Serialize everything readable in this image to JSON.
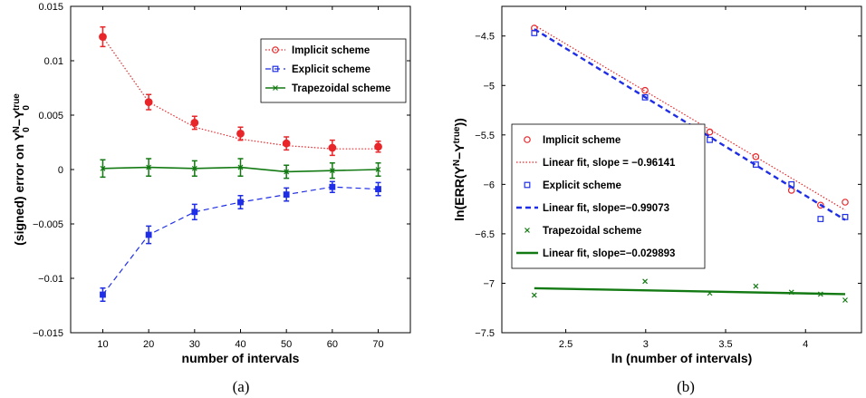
{
  "figure": {
    "colors": {
      "implicit": "#e8262a",
      "explicit": "#1f2ee6",
      "trapezoidal": "#137a13"
    }
  },
  "chart_data": [
    {
      "type": "line",
      "panel_label": "(a)",
      "xlabel": "number of intervals",
      "ylabel": "(signed) error on Y₀ᴺ−Y₀ᵗʳᵘᵉ",
      "ylabel_main": "(signed) error on Y",
      "ylabel_sub1": "0",
      "ylabel_sup1": "N",
      "ylabel_dash": "−Y",
      "ylabel_sub2": "0",
      "ylabel_sup2": "true",
      "xlim": [
        3,
        77
      ],
      "ylim": [
        -0.015,
        0.015
      ],
      "x_ticks": [
        "10",
        "20",
        "30",
        "40",
        "50",
        "60",
        "70"
      ],
      "y_ticks": [
        "−0.015",
        "−0.01",
        "−0.005",
        "0",
        "0.005",
        "0.01",
        "0.015"
      ],
      "x": [
        10,
        20,
        30,
        40,
        50,
        60,
        70
      ],
      "grid": false,
      "legend_position": "top-right",
      "series": [
        {
          "name": "Implicit scheme",
          "marker": "circle",
          "style": "dotted",
          "values": [
            0.0122,
            0.0062,
            0.0043,
            0.0033,
            0.0024,
            0.002,
            0.0021
          ],
          "errors": [
            0.0009,
            0.0007,
            0.0006,
            0.0006,
            0.0006,
            0.0007,
            0.0005
          ],
          "fit": [
            0.0122,
            0.0062,
            0.0039,
            0.0028,
            0.0022,
            0.0019,
            0.0019
          ]
        },
        {
          "name": "Explicit scheme",
          "marker": "square",
          "style": "dashed",
          "values": [
            -0.0115,
            -0.006,
            -0.0039,
            -0.003,
            -0.0023,
            -0.0016,
            -0.0018
          ],
          "errors": [
            0.0006,
            0.0008,
            0.0007,
            0.0006,
            0.0006,
            0.0005,
            0.0006
          ]
        },
        {
          "name": "Trapezoidal scheme",
          "marker": "x",
          "style": "solid",
          "values": [
            0.0001,
            0.0002,
            0.0001,
            0.0002,
            -0.0002,
            -0.0001,
            0.0
          ],
          "errors": [
            0.0008,
            0.0008,
            0.0007,
            0.0008,
            0.0006,
            0.0007,
            0.0006
          ]
        }
      ]
    },
    {
      "type": "scatter",
      "panel_label": "(b)",
      "xlabel": "ln (number of intervals)",
      "ylabel": "ln(ERR(Yᴺ−Yᵗʳᵘᵉ))",
      "ylabel_main": "ln(ERR(Y",
      "ylabel_sup1": "N",
      "ylabel_dash": "−Y",
      "ylabel_sup2": "true",
      "ylabel_close": "))",
      "xlim": [
        2.1,
        4.35
      ],
      "ylim": [
        -7.5,
        -4.2
      ],
      "x_ticks": [
        "2.5",
        "3",
        "3.5",
        "4"
      ],
      "y_ticks": [
        "−7.5",
        "−7",
        "−6.5",
        "−6",
        "−5.5",
        "−5",
        "−4.5"
      ],
      "grid": false,
      "legend_position": "center-left",
      "series": [
        {
          "name": "Implicit scheme",
          "marker": "circle",
          "x": [
            2.303,
            2.996,
            3.401,
            3.689,
            3.912,
            4.094,
            4.248
          ],
          "values": [
            -4.42,
            -5.05,
            -5.47,
            -5.72,
            -6.06,
            -6.21,
            -6.18
          ]
        },
        {
          "name": "Linear fit, slope = −0.96141",
          "style": "dotted",
          "line": true,
          "x": [
            2.303,
            4.248
          ],
          "values": [
            -4.39,
            -6.26
          ]
        },
        {
          "name": "Explicit scheme",
          "marker": "square",
          "x": [
            2.303,
            2.996,
            3.401,
            3.689,
            3.912,
            4.094,
            4.248
          ],
          "values": [
            -4.47,
            -5.12,
            -5.55,
            -5.8,
            -6.0,
            -6.35,
            -6.33
          ]
        },
        {
          "name": "Linear fit, slope=−0.99073",
          "style": "dashed",
          "line": true,
          "x": [
            2.303,
            4.248
          ],
          "values": [
            -4.43,
            -6.36
          ]
        },
        {
          "name": "Trapezoidal scheme",
          "marker": "x",
          "x": [
            2.303,
            2.996,
            3.401,
            3.689,
            3.912,
            4.094,
            4.248
          ],
          "values": [
            -7.12,
            -6.98,
            -7.1,
            -7.03,
            -7.09,
            -7.11,
            -7.17
          ]
        },
        {
          "name": "Linear fit, slope=−0.029893",
          "style": "solid",
          "line": true,
          "x": [
            2.303,
            4.248
          ],
          "values": [
            -7.05,
            -7.11
          ]
        }
      ]
    }
  ]
}
